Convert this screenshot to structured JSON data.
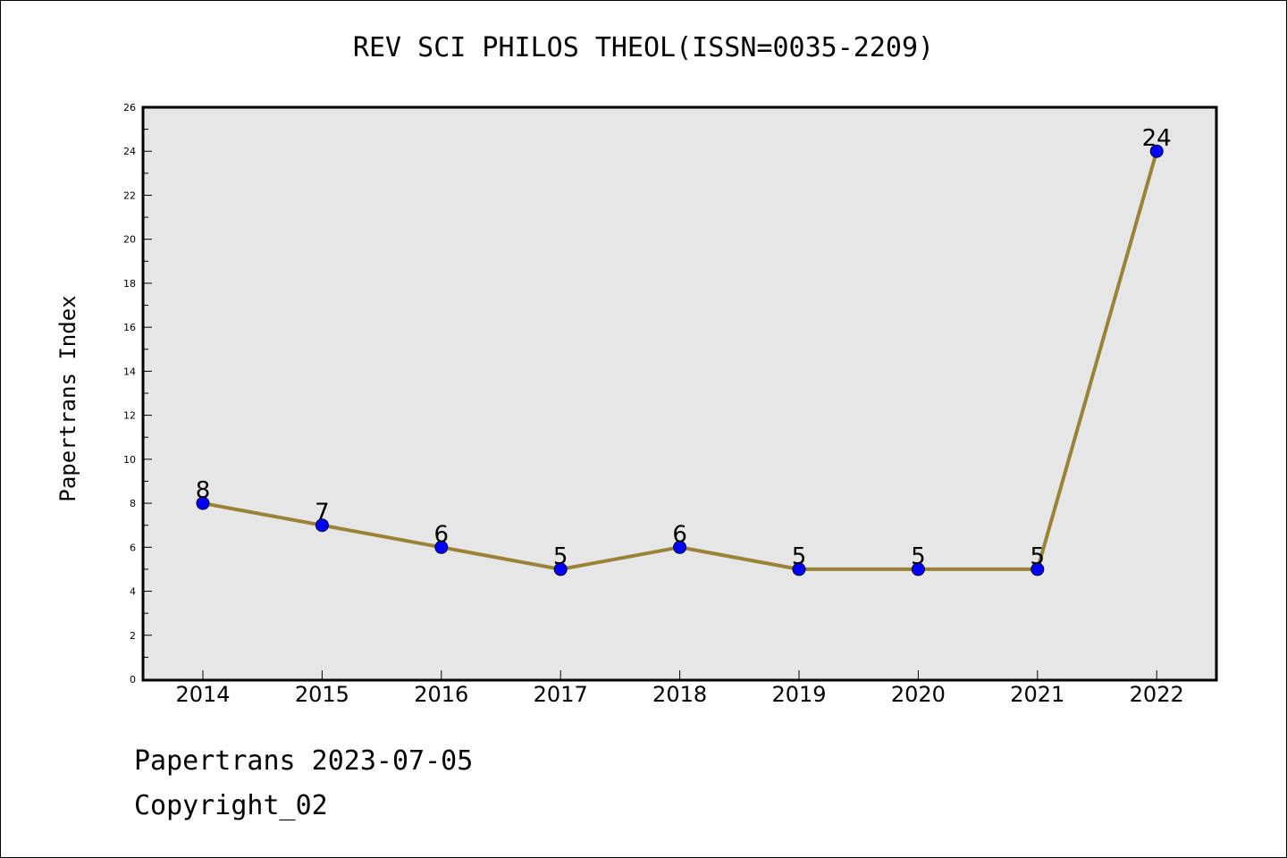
{
  "chart_data": {
    "type": "line",
    "title": "REV SCI PHILOS THEOL(ISSN=0035-2209)",
    "xlabel": "",
    "ylabel": "Papertrans Index",
    "categories": [
      "2014",
      "2015",
      "2016",
      "2017",
      "2018",
      "2019",
      "2020",
      "2021",
      "2022"
    ],
    "series": [
      {
        "values": [
          8,
          7,
          6,
          5,
          6,
          5,
          5,
          5,
          24
        ]
      }
    ],
    "ylim": [
      0,
      26
    ],
    "yticks": [
      0,
      2,
      4,
      6,
      8,
      10,
      12,
      14,
      16,
      18,
      20,
      22,
      24,
      26
    ],
    "grid": false,
    "colors": {
      "line": "#9a8236",
      "marker": "#0000ff",
      "plot_background": "#e6e6e6"
    }
  },
  "footer": {
    "line1": "Papertrans 2023-07-05",
    "line2": "Copyright_02"
  }
}
